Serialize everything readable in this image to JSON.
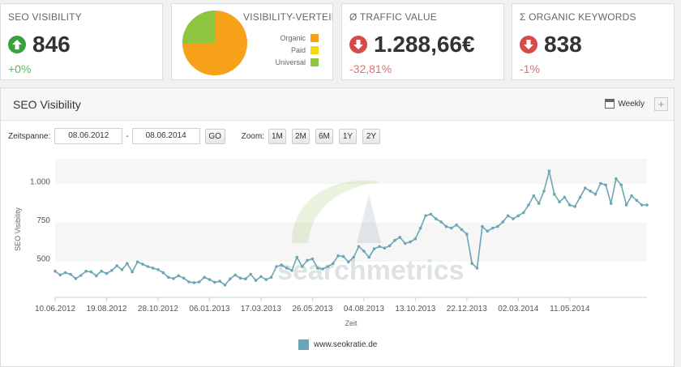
{
  "kpis": {
    "visibility": {
      "title": "SEO VISIBILITY",
      "value": "846",
      "change": "+0%"
    },
    "distribution": {
      "title": "VISIBILITY-VERTEIL",
      "legend": [
        "Organic",
        "Paid",
        "Universal"
      ],
      "colors": [
        "#f7a11a",
        "#f5d80f",
        "#8cc63e"
      ],
      "shares": [
        0.81,
        0.0,
        0.19
      ]
    },
    "traffic": {
      "title": "Ø TRAFFIC VALUE",
      "value": "1.288,66€",
      "change": "-32,81%"
    },
    "keywords": {
      "title": "Σ ORGANIC KEYWORDS",
      "value": "838",
      "change": "-1%"
    }
  },
  "panel": {
    "title": "SEO Visibility",
    "interval_label": "Weekly",
    "plus_label": "+",
    "timespan_label": "Zeitspanne:",
    "date_from": "08.06.2012",
    "date_separator": "-",
    "date_to": "08.06.2014",
    "go_label": "GO",
    "zoom_label": "Zoom:",
    "zoom_options": [
      "1M",
      "2M",
      "6M",
      "1Y",
      "2Y"
    ]
  },
  "chart_data": {
    "type": "line",
    "ylabel": "SEO Visibility",
    "xlabel": "Zeit",
    "watermark": "searchmetrics",
    "y_ticks": [
      "500",
      "750",
      "1.000"
    ],
    "x_ticks": [
      "10.06.2012",
      "19.08.2012",
      "28.10.2012",
      "06.01.2013",
      "17.03.2013",
      "26.05.2013",
      "04.08.2013",
      "13.10.2013",
      "22.12.2013",
      "02.03.2014",
      "11.05.2014"
    ],
    "ylim": [
      250,
      1150
    ],
    "series": [
      {
        "name": "www.seokratie.de",
        "color": "#6aa6b5",
        "values": [
          420,
          395,
          410,
          400,
          372,
          392,
          420,
          415,
          390,
          420,
          405,
          425,
          455,
          430,
          470,
          415,
          480,
          465,
          450,
          440,
          430,
          410,
          380,
          372,
          390,
          375,
          350,
          345,
          350,
          380,
          365,
          348,
          355,
          330,
          370,
          395,
          375,
          370,
          400,
          360,
          385,
          365,
          380,
          450,
          460,
          440,
          425,
          510,
          450,
          490,
          500,
          440,
          435,
          450,
          470,
          520,
          515,
          480,
          510,
          580,
          550,
          510,
          565,
          580,
          570,
          585,
          620,
          640,
          600,
          610,
          630,
          700,
          780,
          790,
          760,
          740,
          710,
          700,
          720,
          690,
          660,
          470,
          440,
          710,
          680,
          700,
          710,
          740,
          780,
          760,
          780,
          800,
          850,
          910,
          860,
          940,
          1070,
          920,
          870,
          900,
          850,
          840,
          900,
          960,
          940,
          920,
          990,
          980,
          860,
          1020,
          980,
          850,
          910,
          880,
          850,
          850
        ]
      }
    ]
  }
}
